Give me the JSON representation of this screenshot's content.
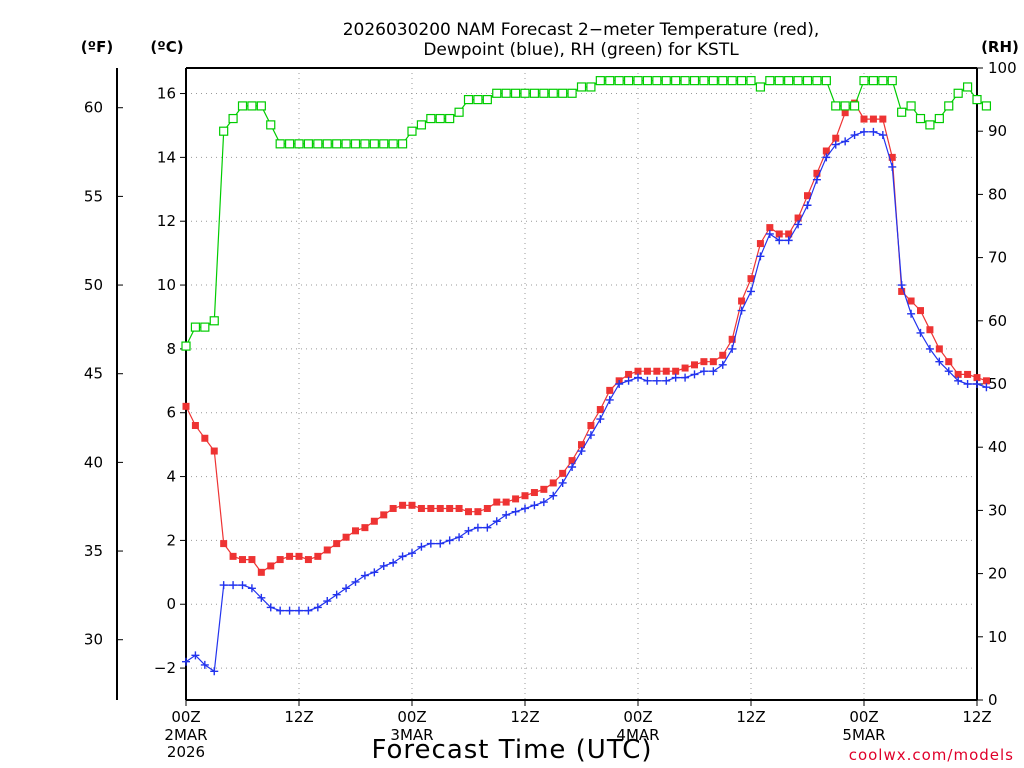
{
  "chart_data": {
    "type": "line",
    "title_lines": [
      "2026030200 NAM Forecast 2−meter Temperature (red),",
      "Dewpoint (blue), RH (green) for KSTL"
    ],
    "xlabel": "Forecast Time (UTC)",
    "credit": "coolwx.com/models",
    "left_outer_unit": "(ºF)",
    "left_inner_unit": "(ºC)",
    "right_unit": "(RH)",
    "x_range_hours": [
      0,
      84
    ],
    "x_ticks": [
      {
        "hour": 0,
        "label": "00Z",
        "date": [
          "2MAR",
          "2026"
        ]
      },
      {
        "hour": 12,
        "label": "12Z",
        "date": []
      },
      {
        "hour": 24,
        "label": "00Z",
        "date": [
          "3MAR"
        ]
      },
      {
        "hour": 36,
        "label": "12Z",
        "date": []
      },
      {
        "hour": 48,
        "label": "00Z",
        "date": [
          "4MAR"
        ]
      },
      {
        "hour": 60,
        "label": "12Z",
        "date": []
      },
      {
        "hour": 72,
        "label": "00Z",
        "date": [
          "5MAR"
        ]
      },
      {
        "hour": 84,
        "label": "12Z",
        "date": []
      }
    ],
    "celsius_range": [
      -3,
      16.8
    ],
    "celsius_ticks": [
      "−2",
      "0",
      "2",
      "4",
      "6",
      "8",
      "10",
      "12",
      "14",
      "16"
    ],
    "fahrenheit_ticks": [
      "30",
      "35",
      "40",
      "45",
      "50",
      "55",
      "60"
    ],
    "rh_range": [
      0,
      100
    ],
    "rh_ticks": [
      "0",
      "10",
      "20",
      "30",
      "40",
      "50",
      "60",
      "70",
      "80",
      "90",
      "100"
    ],
    "grid": true,
    "colors": {
      "temperature": "#ee3333",
      "dewpoint": "#2233ee",
      "rh": "#00cc00",
      "grid": "#999999"
    },
    "series": [
      {
        "name": "Temperature",
        "unit": "C",
        "marker": "filled-square",
        "points": [
          [
            0,
            6.2
          ],
          [
            1,
            5.6
          ],
          [
            2,
            5.2
          ],
          [
            3,
            4.8
          ],
          [
            4,
            1.9
          ],
          [
            5,
            1.5
          ],
          [
            6,
            1.4
          ],
          [
            7,
            1.4
          ],
          [
            8,
            1.0
          ],
          [
            9,
            1.2
          ],
          [
            10,
            1.4
          ],
          [
            11,
            1.5
          ],
          [
            12,
            1.5
          ],
          [
            13,
            1.4
          ],
          [
            14,
            1.5
          ],
          [
            15,
            1.7
          ],
          [
            16,
            1.9
          ],
          [
            17,
            2.1
          ],
          [
            18,
            2.3
          ],
          [
            19,
            2.4
          ],
          [
            20,
            2.6
          ],
          [
            21,
            2.8
          ],
          [
            22,
            3.0
          ],
          [
            23,
            3.1
          ],
          [
            24,
            3.1
          ],
          [
            25,
            3.0
          ],
          [
            26,
            3.0
          ],
          [
            27,
            3.0
          ],
          [
            28,
            3.0
          ],
          [
            29,
            3.0
          ],
          [
            30,
            2.9
          ],
          [
            31,
            2.9
          ],
          [
            32,
            3.0
          ],
          [
            33,
            3.2
          ],
          [
            34,
            3.2
          ],
          [
            35,
            3.3
          ],
          [
            36,
            3.4
          ],
          [
            37,
            3.5
          ],
          [
            38,
            3.6
          ],
          [
            39,
            3.8
          ],
          [
            40,
            4.1
          ],
          [
            41,
            4.5
          ],
          [
            42,
            5.0
          ],
          [
            43,
            5.6
          ],
          [
            44,
            6.1
          ],
          [
            45,
            6.7
          ],
          [
            46,
            7.0
          ],
          [
            47,
            7.2
          ],
          [
            48,
            7.3
          ],
          [
            49,
            7.3
          ],
          [
            50,
            7.3
          ],
          [
            51,
            7.3
          ],
          [
            52,
            7.3
          ],
          [
            53,
            7.4
          ],
          [
            54,
            7.5
          ],
          [
            55,
            7.6
          ],
          [
            56,
            7.6
          ],
          [
            57,
            7.8
          ],
          [
            58,
            8.3
          ],
          [
            59,
            9.5
          ],
          [
            60,
            10.2
          ],
          [
            61,
            11.3
          ],
          [
            62,
            11.8
          ],
          [
            63,
            11.6
          ],
          [
            64,
            11.6
          ],
          [
            65,
            12.1
          ],
          [
            66,
            12.8
          ],
          [
            67,
            13.5
          ],
          [
            68,
            14.2
          ],
          [
            69,
            14.6
          ],
          [
            70,
            15.4
          ],
          [
            71,
            15.7
          ],
          [
            72,
            15.2
          ],
          [
            73,
            15.2
          ],
          [
            74,
            15.2
          ],
          [
            75,
            14.0
          ],
          [
            76,
            9.8
          ],
          [
            77,
            9.5
          ],
          [
            78,
            9.2
          ],
          [
            79,
            8.6
          ],
          [
            80,
            8.0
          ],
          [
            81,
            7.6
          ],
          [
            82,
            7.2
          ],
          [
            83,
            7.2
          ],
          [
            84,
            7.1
          ],
          [
            85,
            7.0
          ],
          [
            86,
            6.8
          ]
        ]
      },
      {
        "name": "Dewpoint",
        "unit": "C",
        "marker": "plus",
        "points": [
          [
            0,
            -1.8
          ],
          [
            1,
            -1.6
          ],
          [
            2,
            -1.9
          ],
          [
            3,
            -2.1
          ],
          [
            4,
            0.6
          ],
          [
            5,
            0.6
          ],
          [
            6,
            0.6
          ],
          [
            7,
            0.5
          ],
          [
            8,
            0.2
          ],
          [
            9,
            -0.1
          ],
          [
            10,
            -0.2
          ],
          [
            11,
            -0.2
          ],
          [
            12,
            -0.2
          ],
          [
            13,
            -0.2
          ],
          [
            14,
            -0.1
          ],
          [
            15,
            0.1
          ],
          [
            16,
            0.3
          ],
          [
            17,
            0.5
          ],
          [
            18,
            0.7
          ],
          [
            19,
            0.9
          ],
          [
            20,
            1.0
          ],
          [
            21,
            1.2
          ],
          [
            22,
            1.3
          ],
          [
            23,
            1.5
          ],
          [
            24,
            1.6
          ],
          [
            25,
            1.8
          ],
          [
            26,
            1.9
          ],
          [
            27,
            1.9
          ],
          [
            28,
            2.0
          ],
          [
            29,
            2.1
          ],
          [
            30,
            2.3
          ],
          [
            31,
            2.4
          ],
          [
            32,
            2.4
          ],
          [
            33,
            2.6
          ],
          [
            34,
            2.8
          ],
          [
            35,
            2.9
          ],
          [
            36,
            3.0
          ],
          [
            37,
            3.1
          ],
          [
            38,
            3.2
          ],
          [
            39,
            3.4
          ],
          [
            40,
            3.8
          ],
          [
            41,
            4.3
          ],
          [
            42,
            4.8
          ],
          [
            43,
            5.3
          ],
          [
            44,
            5.8
          ],
          [
            45,
            6.4
          ],
          [
            46,
            6.9
          ],
          [
            47,
            7.0
          ],
          [
            48,
            7.1
          ],
          [
            49,
            7.0
          ],
          [
            50,
            7.0
          ],
          [
            51,
            7.0
          ],
          [
            52,
            7.1
          ],
          [
            53,
            7.1
          ],
          [
            54,
            7.2
          ],
          [
            55,
            7.3
          ],
          [
            56,
            7.3
          ],
          [
            57,
            7.5
          ],
          [
            58,
            8.0
          ],
          [
            59,
            9.2
          ],
          [
            60,
            9.8
          ],
          [
            61,
            10.9
          ],
          [
            62,
            11.6
          ],
          [
            63,
            11.4
          ],
          [
            64,
            11.4
          ],
          [
            65,
            11.9
          ],
          [
            66,
            12.5
          ],
          [
            67,
            13.3
          ],
          [
            68,
            14.0
          ],
          [
            69,
            14.4
          ],
          [
            70,
            14.5
          ],
          [
            71,
            14.7
          ],
          [
            72,
            14.8
          ],
          [
            73,
            14.8
          ],
          [
            74,
            14.7
          ],
          [
            75,
            13.7
          ],
          [
            76,
            10.0
          ],
          [
            77,
            9.1
          ],
          [
            78,
            8.5
          ],
          [
            79,
            8.0
          ],
          [
            80,
            7.6
          ],
          [
            81,
            7.3
          ],
          [
            82,
            7.0
          ],
          [
            83,
            6.9
          ],
          [
            84,
            6.9
          ],
          [
            85,
            6.8
          ],
          [
            86,
            6.5
          ],
          [
            87,
            6.1
          ]
        ]
      },
      {
        "name": "RH",
        "unit": "%",
        "marker": "open-square",
        "points": [
          [
            0,
            56
          ],
          [
            1,
            59
          ],
          [
            2,
            59
          ],
          [
            3,
            60
          ],
          [
            4,
            90
          ],
          [
            5,
            92
          ],
          [
            6,
            94
          ],
          [
            7,
            94
          ],
          [
            8,
            94
          ],
          [
            9,
            91
          ],
          [
            10,
            88
          ],
          [
            11,
            88
          ],
          [
            12,
            88
          ],
          [
            13,
            88
          ],
          [
            14,
            88
          ],
          [
            15,
            88
          ],
          [
            16,
            88
          ],
          [
            17,
            88
          ],
          [
            18,
            88
          ],
          [
            19,
            88
          ],
          [
            20,
            88
          ],
          [
            21,
            88
          ],
          [
            22,
            88
          ],
          [
            23,
            88
          ],
          [
            24,
            90
          ],
          [
            25,
            91
          ],
          [
            26,
            92
          ],
          [
            27,
            92
          ],
          [
            28,
            92
          ],
          [
            29,
            93
          ],
          [
            30,
            95
          ],
          [
            31,
            95
          ],
          [
            32,
            95
          ],
          [
            33,
            96
          ],
          [
            34,
            96
          ],
          [
            35,
            96
          ],
          [
            36,
            96
          ],
          [
            37,
            96
          ],
          [
            38,
            96
          ],
          [
            39,
            96
          ],
          [
            40,
            96
          ],
          [
            41,
            96
          ],
          [
            42,
            97
          ],
          [
            43,
            97
          ],
          [
            44,
            98
          ],
          [
            45,
            98
          ],
          [
            46,
            98
          ],
          [
            47,
            98
          ],
          [
            48,
            98
          ],
          [
            49,
            98
          ],
          [
            50,
            98
          ],
          [
            51,
            98
          ],
          [
            52,
            98
          ],
          [
            53,
            98
          ],
          [
            54,
            98
          ],
          [
            55,
            98
          ],
          [
            56,
            98
          ],
          [
            57,
            98
          ],
          [
            58,
            98
          ],
          [
            59,
            98
          ],
          [
            60,
            98
          ],
          [
            61,
            97
          ],
          [
            62,
            98
          ],
          [
            63,
            98
          ],
          [
            64,
            98
          ],
          [
            65,
            98
          ],
          [
            66,
            98
          ],
          [
            67,
            98
          ],
          [
            68,
            98
          ],
          [
            69,
            94
          ],
          [
            70,
            94
          ],
          [
            71,
            94
          ],
          [
            72,
            98
          ],
          [
            73,
            98
          ],
          [
            74,
            98
          ],
          [
            75,
            98
          ],
          [
            76,
            93
          ],
          [
            77,
            94
          ],
          [
            78,
            92
          ],
          [
            79,
            91
          ],
          [
            80,
            92
          ],
          [
            81,
            94
          ],
          [
            82,
            96
          ],
          [
            83,
            97
          ],
          [
            84,
            95
          ],
          [
            85,
            94
          ],
          [
            86,
            93
          ],
          [
            87,
            93
          ]
        ]
      }
    ]
  }
}
